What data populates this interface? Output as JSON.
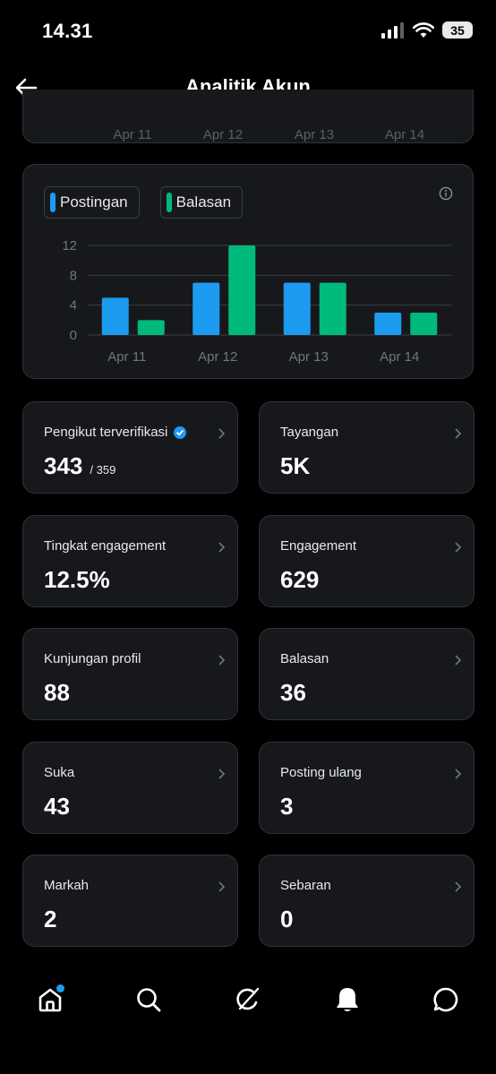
{
  "status_bar": {
    "time": "14.31",
    "battery": "35"
  },
  "header": {
    "title": "Analitik Akun"
  },
  "top_card": {
    "labels": [
      "Apr 11",
      "Apr 12",
      "Apr 13",
      "Apr 14"
    ]
  },
  "chart_data": {
    "type": "bar",
    "categories": [
      "Apr 11",
      "Apr 12",
      "Apr 13",
      "Apr 14"
    ],
    "series": [
      {
        "name": "Postingan",
        "values": [
          5,
          7,
          7,
          3
        ],
        "color": "#1d9bf0"
      },
      {
        "name": "Balasan",
        "values": [
          2,
          12,
          7,
          3
        ],
        "color": "#00ba7c"
      }
    ],
    "yticks": [
      0,
      4,
      8,
      12
    ],
    "ylim": [
      0,
      12
    ],
    "grid": true,
    "legend": "top-left"
  },
  "stats": [
    {
      "label": "Pengikut terverifikasi",
      "value": "343",
      "sub": "/ 359",
      "verified": true
    },
    {
      "label": "Tayangan",
      "value": "5K"
    },
    {
      "label": "Tingkat engagement",
      "value": "12.5%"
    },
    {
      "label": "Engagement",
      "value": "629"
    },
    {
      "label": "Kunjungan profil",
      "value": "88"
    },
    {
      "label": "Balasan",
      "value": "36"
    },
    {
      "label": "Suka",
      "value": "43"
    },
    {
      "label": "Posting ulang",
      "value": "3"
    },
    {
      "label": "Markah",
      "value": "2"
    },
    {
      "label": "Sebaran",
      "value": "0"
    }
  ],
  "colors": {
    "accent": "#1d9bf0",
    "green": "#00ba7c",
    "card": "#16181c",
    "border": "#2f3336"
  },
  "tabs": [
    {
      "icon": "home-icon",
      "notification_dot": true
    },
    {
      "icon": "search-icon"
    },
    {
      "icon": "grok-icon"
    },
    {
      "icon": "notifications-bell-icon"
    },
    {
      "icon": "messages-icon"
    }
  ]
}
